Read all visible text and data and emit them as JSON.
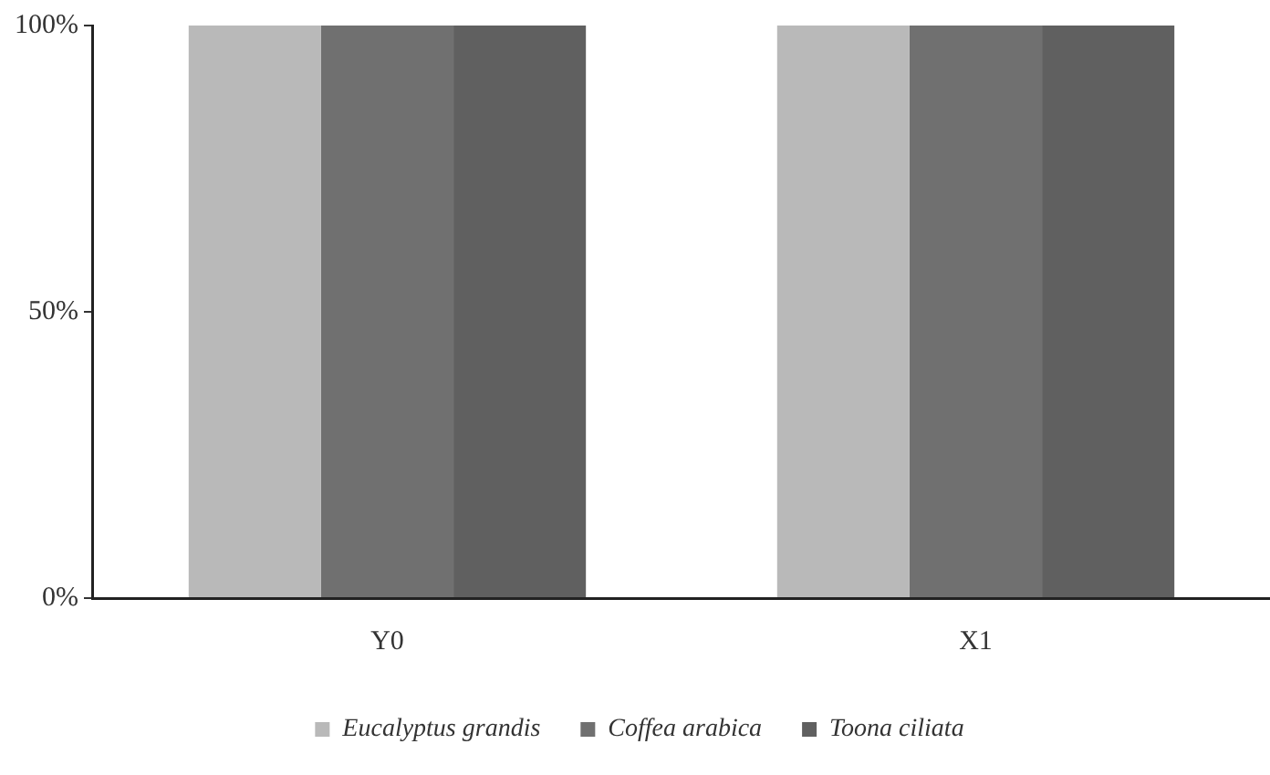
{
  "chart_data": {
    "type": "bar",
    "categories": [
      "Y0",
      "X1"
    ],
    "series": [
      {
        "name": "Eucalyptus grandis",
        "color": "#b9b9b9",
        "values": [
          100,
          100
        ]
      },
      {
        "name": "Coffea arabica",
        "color": "#707070",
        "values": [
          100,
          100
        ]
      },
      {
        "name": "Toona ciliata",
        "color": "#606060",
        "values": [
          100,
          100
        ]
      }
    ],
    "ylim": [
      0,
      100
    ],
    "yticks": [
      {
        "value": 0,
        "label": "0%"
      },
      {
        "value": 50,
        "label": "50%"
      },
      {
        "value": 100,
        "label": "100%"
      }
    ],
    "grid": false,
    "legend": "bottom"
  }
}
